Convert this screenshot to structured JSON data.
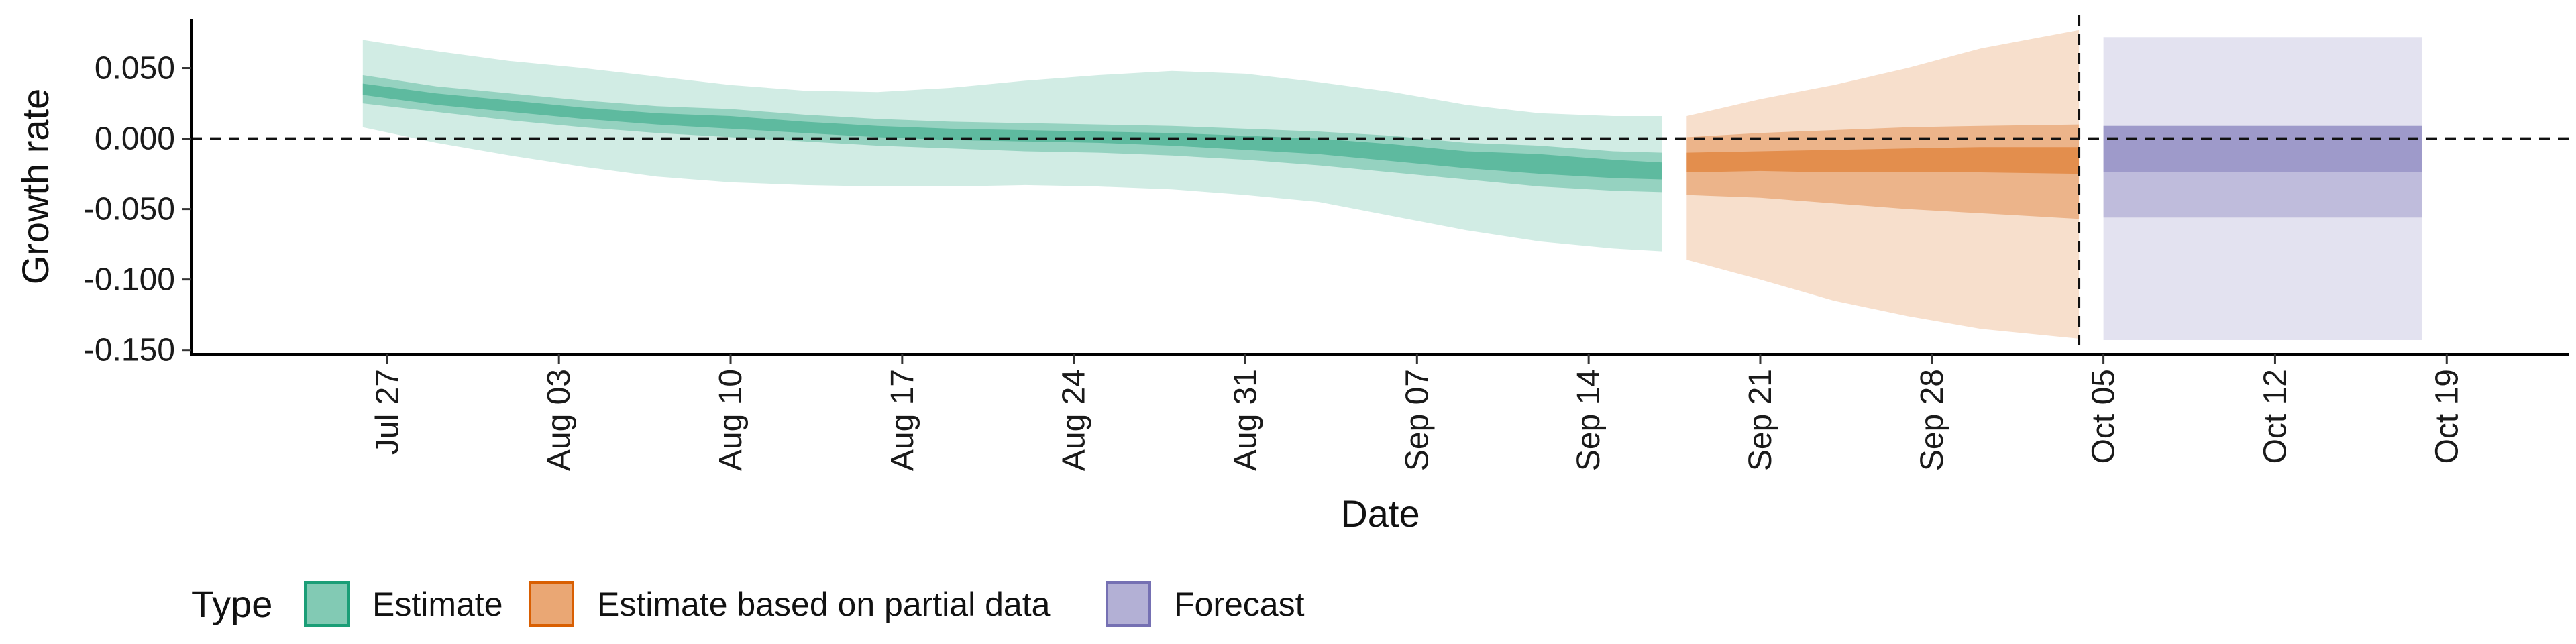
{
  "chart_data": {
    "type": "area",
    "xlabel": "Date",
    "ylabel": "Growth rate",
    "ylim": [
      -0.153,
      0.085
    ],
    "y_ticks": [
      0.05,
      0.0,
      -0.05,
      -0.1,
      -0.15
    ],
    "y_tick_labels": [
      "0.050",
      "0.000",
      "-0.050",
      "-0.100",
      "-0.150"
    ],
    "xlim": [
      "2020-07-19",
      "2020-10-24"
    ],
    "x_ticks": [
      "2020-07-27",
      "2020-08-03",
      "2020-08-10",
      "2020-08-17",
      "2020-08-24",
      "2020-08-31",
      "2020-09-07",
      "2020-09-14",
      "2020-09-21",
      "2020-09-28",
      "2020-10-05",
      "2020-10-12",
      "2020-10-19"
    ],
    "x_tick_labels": [
      "Jul 27",
      "Aug 03",
      "Aug 10",
      "Aug 17",
      "Aug 24",
      "Aug 31",
      "Sep 07",
      "Sep 14",
      "Sep 21",
      "Sep 28",
      "Oct 05",
      "Oct 12",
      "Oct 19"
    ],
    "hline_y": 0,
    "vline_x": "2020-10-04",
    "legend": {
      "title": "Type",
      "position": "bottom-left",
      "entries": [
        {
          "label": "Estimate",
          "color": "#1B9E77"
        },
        {
          "label": "Estimate based on partial data",
          "color": "#D95F02"
        },
        {
          "label": "Forecast",
          "color": "#7570B3"
        }
      ]
    },
    "series": [
      {
        "name": "Estimate",
        "color": "#1B9E77",
        "x": [
          "2020-07-26",
          "2020-07-29",
          "2020-08-01",
          "2020-08-04",
          "2020-08-07",
          "2020-08-10",
          "2020-08-13",
          "2020-08-16",
          "2020-08-19",
          "2020-08-22",
          "2020-08-25",
          "2020-08-28",
          "2020-08-31",
          "2020-09-03",
          "2020-09-06",
          "2020-09-09",
          "2020-09-12",
          "2020-09-15",
          "2020-09-17"
        ],
        "median": [
          0.035,
          0.028,
          0.023,
          0.018,
          0.014,
          0.012,
          0.008,
          0.005,
          0.003,
          0.002,
          0.001,
          0.0,
          -0.003,
          -0.005,
          -0.01,
          -0.015,
          -0.018,
          -0.022,
          -0.023
        ],
        "lower_20": [
          0.031,
          0.024,
          0.019,
          0.014,
          0.01,
          0.007,
          0.004,
          0.001,
          -0.001,
          -0.002,
          -0.003,
          -0.005,
          -0.008,
          -0.011,
          -0.016,
          -0.021,
          -0.025,
          -0.028,
          -0.029
        ],
        "upper_20": [
          0.039,
          0.032,
          0.027,
          0.022,
          0.018,
          0.016,
          0.012,
          0.009,
          0.007,
          0.006,
          0.005,
          0.004,
          0.002,
          0.0,
          -0.004,
          -0.009,
          -0.011,
          -0.015,
          -0.017
        ],
        "lower_50": [
          0.025,
          0.019,
          0.013,
          0.008,
          0.004,
          0.001,
          -0.002,
          -0.005,
          -0.007,
          -0.009,
          -0.01,
          -0.012,
          -0.015,
          -0.019,
          -0.024,
          -0.029,
          -0.034,
          -0.037,
          -0.038
        ],
        "upper_50": [
          0.045,
          0.037,
          0.032,
          0.027,
          0.023,
          0.021,
          0.017,
          0.014,
          0.012,
          0.011,
          0.01,
          0.009,
          0.007,
          0.005,
          0.002,
          -0.003,
          -0.005,
          -0.009,
          -0.01
        ],
        "lower_90": [
          0.008,
          -0.003,
          -0.012,
          -0.02,
          -0.027,
          -0.031,
          -0.033,
          -0.034,
          -0.034,
          -0.033,
          -0.034,
          -0.036,
          -0.04,
          -0.045,
          -0.055,
          -0.065,
          -0.073,
          -0.078,
          -0.08
        ],
        "upper_90": [
          0.07,
          0.062,
          0.055,
          0.05,
          0.044,
          0.038,
          0.034,
          0.033,
          0.036,
          0.041,
          0.045,
          0.048,
          0.046,
          0.04,
          0.033,
          0.024,
          0.018,
          0.016,
          0.016
        ]
      },
      {
        "name": "Estimate based on partial data",
        "color": "#D95F02",
        "x": [
          "2020-09-18",
          "2020-09-21",
          "2020-09-24",
          "2020-09-27",
          "2020-09-30",
          "2020-10-04"
        ],
        "median": [
          -0.018,
          -0.017,
          -0.017,
          -0.016,
          -0.015,
          -0.015
        ],
        "lower_20": [
          -0.024,
          -0.023,
          -0.024,
          -0.024,
          -0.024,
          -0.025
        ],
        "upper_20": [
          -0.01,
          -0.009,
          -0.008,
          -0.007,
          -0.006,
          -0.006
        ],
        "lower_50": [
          -0.04,
          -0.042,
          -0.046,
          -0.05,
          -0.053,
          -0.057
        ],
        "upper_50": [
          0.001,
          0.004,
          0.006,
          0.008,
          0.009,
          0.01
        ],
        "lower_90": [
          -0.086,
          -0.1,
          -0.115,
          -0.126,
          -0.135,
          -0.142
        ],
        "upper_90": [
          0.016,
          0.028,
          0.038,
          0.05,
          0.064,
          0.077
        ]
      },
      {
        "name": "Forecast",
        "color": "#7570B3",
        "x": [
          "2020-10-05",
          "2020-10-18"
        ],
        "median": [
          -0.008,
          -0.008
        ],
        "lower_20": [
          -0.024,
          -0.024
        ],
        "upper_20": [
          0.009,
          0.009
        ],
        "lower_50": [
          -0.056,
          -0.056
        ],
        "upper_50": [
          0.009,
          0.009
        ],
        "lower_90": [
          -0.143,
          -0.143
        ],
        "upper_90": [
          0.072,
          0.072
        ]
      }
    ]
  }
}
